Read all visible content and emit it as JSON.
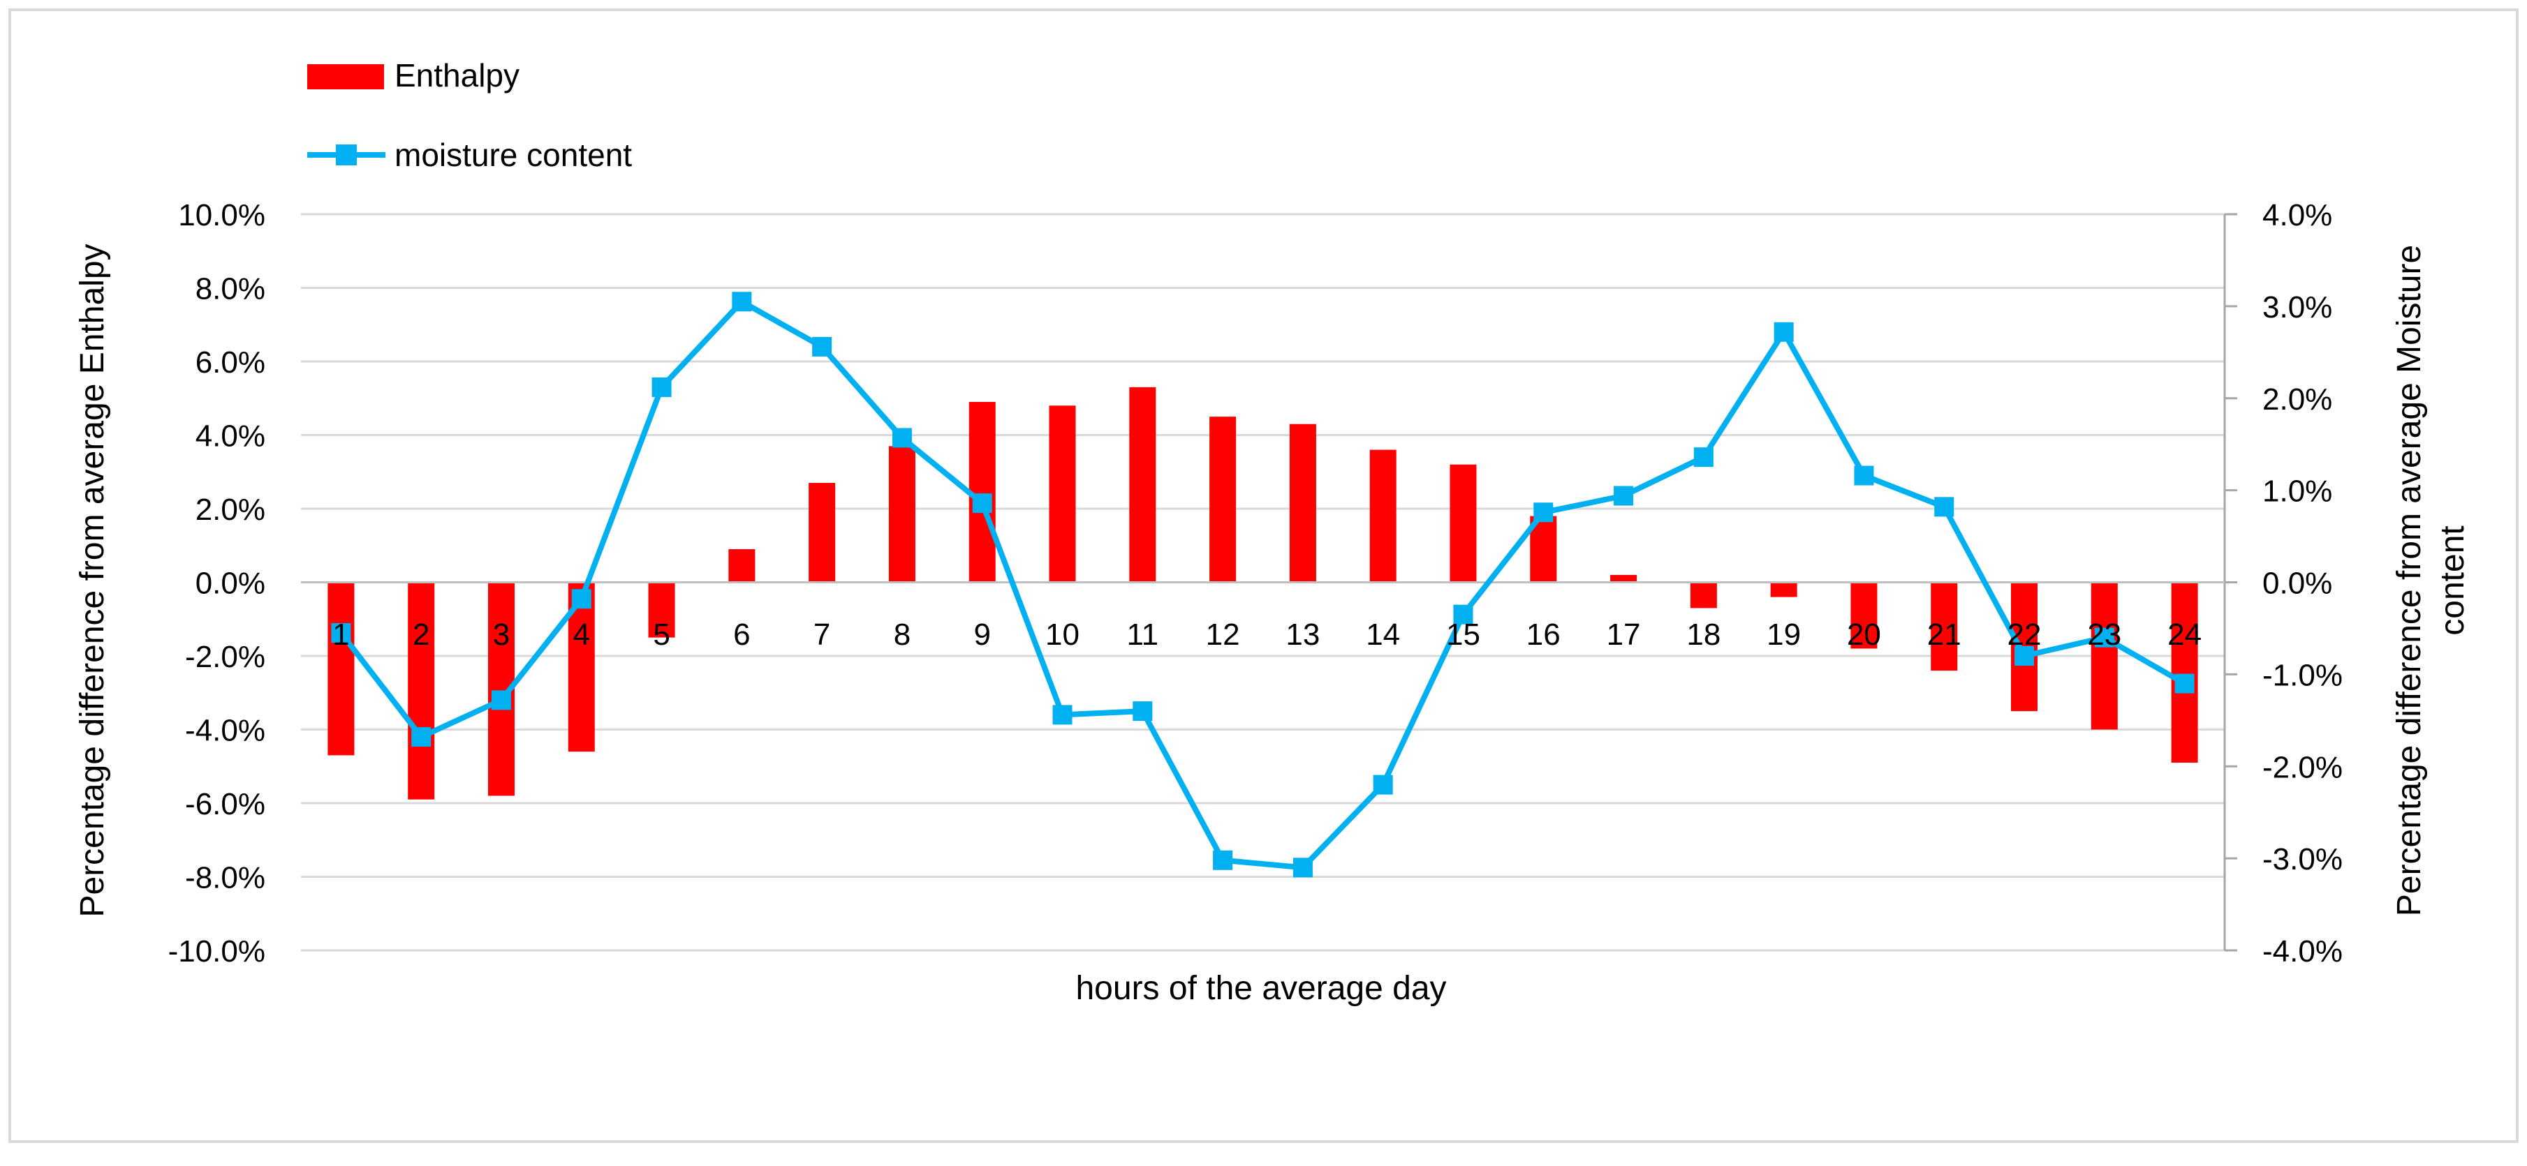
{
  "chart_data": {
    "type": "bar+line",
    "categories": [
      "1",
      "2",
      "3",
      "4",
      "5",
      "6",
      "7",
      "8",
      "9",
      "10",
      "11",
      "12",
      "13",
      "14",
      "15",
      "16",
      "17",
      "18",
      "19",
      "20",
      "21",
      "22",
      "23",
      "24"
    ],
    "series": [
      {
        "name": "Enthalpy",
        "type": "bar",
        "axis": "left",
        "color": "#ff0000",
        "values": [
          -4.7,
          -5.9,
          -5.8,
          -4.6,
          -1.5,
          0.9,
          2.7,
          3.7,
          4.9,
          4.8,
          5.3,
          4.5,
          4.3,
          3.6,
          3.2,
          1.8,
          0.2,
          -0.7,
          -0.4,
          -1.8,
          -2.4,
          -3.5,
          -4.0,
          -4.9
        ]
      },
      {
        "name": "moisture content",
        "type": "line",
        "axis": "right",
        "color": "#00b0f0",
        "marker": "square",
        "values": [
          -0.55,
          -1.68,
          -1.28,
          -0.18,
          2.12,
          3.05,
          2.56,
          1.57,
          0.86,
          -1.44,
          -1.4,
          -3.02,
          -3.1,
          -2.2,
          -0.35,
          0.76,
          0.94,
          1.36,
          2.72,
          1.16,
          0.82,
          -0.8,
          -0.6,
          -1.1
        ]
      }
    ],
    "y_left": {
      "label": "Percentage difference from average Enthalpy",
      "min": -10,
      "max": 10,
      "step": 2,
      "ticks": [
        "10.0%",
        "8.0%",
        "6.0%",
        "4.0%",
        "2.0%",
        "0.0%",
        "-2.0%",
        "-4.0%",
        "-6.0%",
        "-8.0%",
        "-10.0%"
      ]
    },
    "y_right": {
      "label_line1": "Percentage difference from average Moisture",
      "label_line2": "content",
      "min": -4,
      "max": 4,
      "step": 1,
      "ticks": [
        "4.0%",
        "3.0%",
        "2.0%",
        "1.0%",
        "0.0%",
        "-1.0%",
        "-2.0%",
        "-3.0%",
        "-4.0%"
      ]
    },
    "xlabel": "hours of the average day",
    "grid": true,
    "legend_position": "top-left"
  }
}
